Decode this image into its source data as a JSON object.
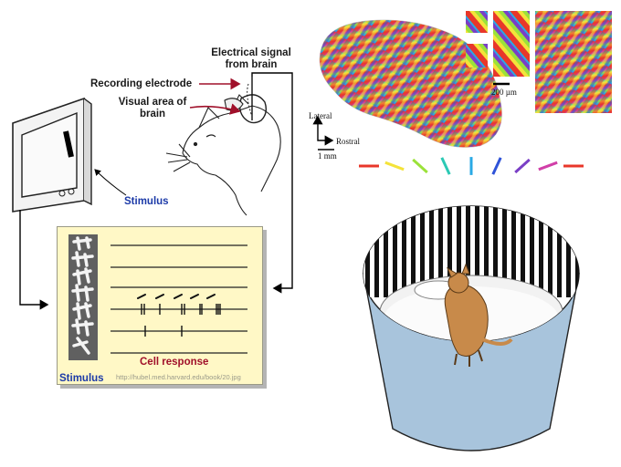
{
  "labels": {
    "electrical_signal_line1": "Electrical signal",
    "electrical_signal_line2": "from brain",
    "recording_electrode": "Recording electrode",
    "visual_area_line1": "Visual area of",
    "visual_area_line2": "brain",
    "stimulus_monitor": "Stimulus",
    "stimulus_panel": "Stimulus",
    "cell_response": "Cell response",
    "source_url": "http://hubel.med.harvard.edu/book/20.jpg"
  },
  "orientation_map": {
    "scale_bar_200": "200 µm",
    "axis_lateral": "Lateral",
    "axis_rostral": "Rostral",
    "scale_1mm": "1 mm",
    "orientation_key_colors": [
      "#e8372a",
      "#f4e33a",
      "#9be23a",
      "#2bc9b4",
      "#2aa9e5",
      "#2f53d8",
      "#7a3fc6",
      "#d13fa8",
      "#e8372a"
    ]
  },
  "colors": {
    "panel_bg": "#fff8c6",
    "label_blue": "#1c3aa8",
    "cell_response_red": "#a0102a",
    "arrow_red": "#a0102a",
    "drum_blue": "#a8c4dc"
  }
}
